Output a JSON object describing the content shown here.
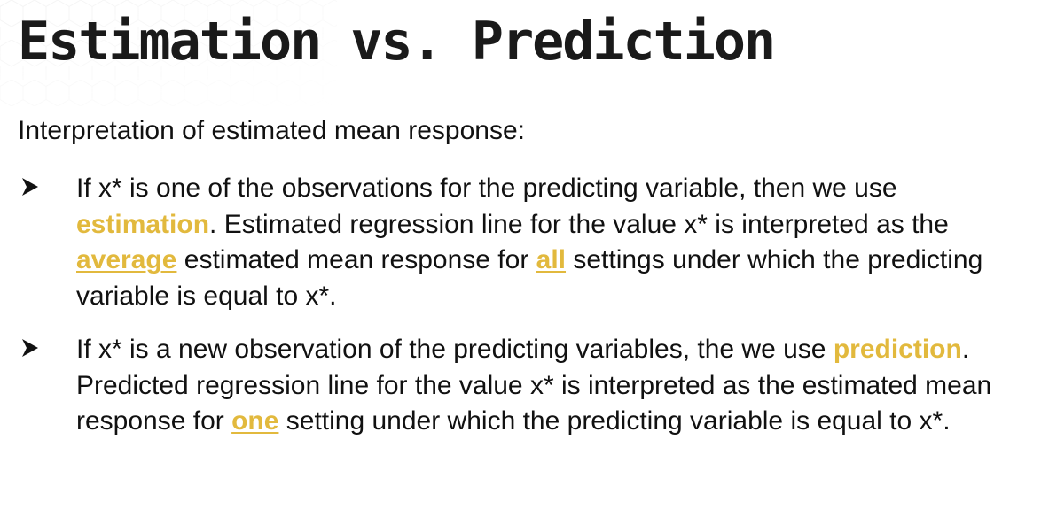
{
  "slide": {
    "title": "Estimation vs. Prediction",
    "intro": "Interpretation of estimated mean response:",
    "accent_color": "#e2b93d",
    "bullet_icon": "arrowhead-bullet-icon",
    "bullets": [
      {
        "segments": [
          "If x* is one of the observations for the predicting variable, then we use ",
          "estimation",
          ". Estimated regression line for the value x* is interpreted as the ",
          "average",
          " estimated mean response for ",
          "all",
          " settings under which the predicting variable is equal to x*."
        ]
      },
      {
        "segments": [
          "If x* is a new observation of the predicting variables, the we use ",
          "prediction",
          ". Predicted regression line for the value x* is interpreted as the estimated mean response for ",
          "one",
          " setting under which the predicting variable is equal to x*."
        ]
      }
    ]
  }
}
